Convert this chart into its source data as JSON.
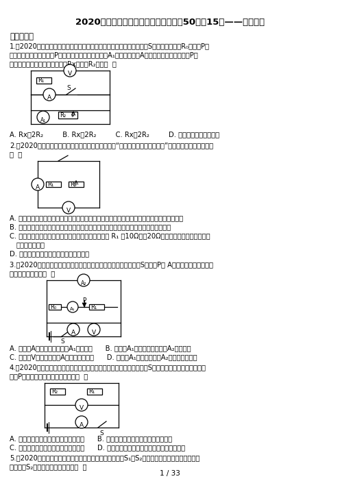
{
  "title": "2020年全国各地物理中考模拟试题精鍩50题（15）——欧姆定律",
  "section": "一、单选题",
  "background_color": "#ffffff",
  "text_color": "#000000",
  "page_indicator": "1 / 33"
}
